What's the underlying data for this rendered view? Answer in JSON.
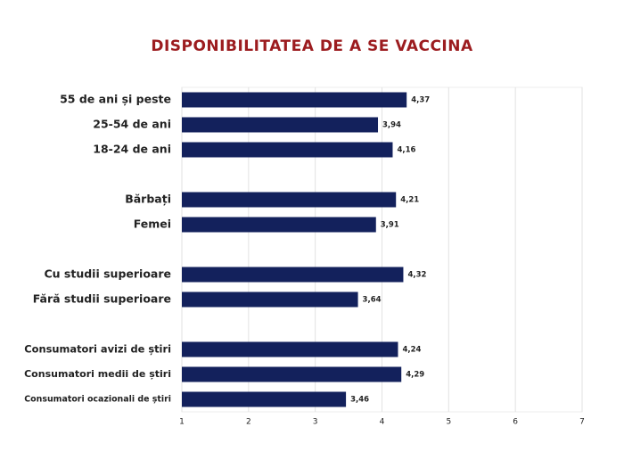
{
  "chart_data": {
    "type": "hbar",
    "title": "DISPONIBILITATEA DE A SE VACCINA",
    "categories": [
      "55 de ani și peste",
      "25-54 de ani",
      "18-24 de ani",
      null,
      "Bărbați",
      "Femei",
      null,
      "Cu studii superioare",
      "Fără studii superioare",
      null,
      "Consumatori avizi de știri",
      "Consumatori medii de știri",
      "Consumatori ocazionali de știri"
    ],
    "values": [
      4.37,
      3.94,
      4.16,
      null,
      4.21,
      3.91,
      null,
      4.32,
      3.64,
      null,
      4.24,
      4.29,
      3.46
    ],
    "value_labels": [
      "4,37",
      "3,94",
      "4,16",
      null,
      "4,21",
      "3,91",
      null,
      "4,32",
      "3,64",
      null,
      "4,24",
      "4,29",
      "3,46"
    ],
    "color": "#13215c",
    "xlim": [
      1,
      7
    ],
    "xticks": [
      1,
      2,
      3,
      4,
      5,
      6,
      7
    ],
    "grid": true
  }
}
